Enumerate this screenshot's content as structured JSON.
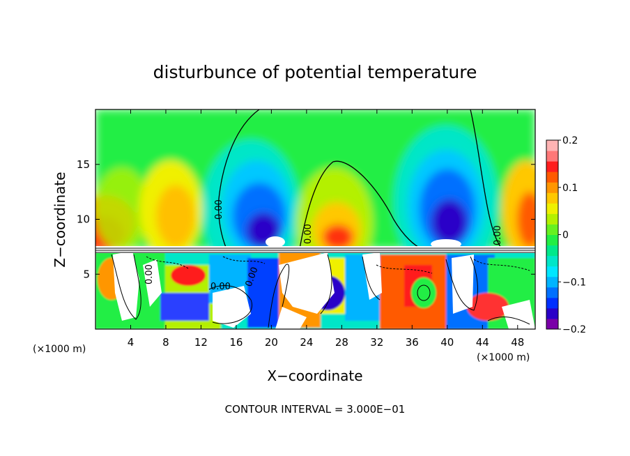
{
  "chart_data": {
    "type": "heatmap",
    "title": "disturbunce of potential temperature",
    "xlabel": "X−coordinate",
    "ylabel": "Z−coordinate",
    "x_unit_label": "(×1000 m)",
    "x_unit_label_right": "(×1000 m)",
    "footer": "CONTOUR INTERVAL = 3.000E−01",
    "xlim": [
      0,
      50
    ],
    "ylim": [
      0,
      20
    ],
    "x_ticks": [
      "4",
      "8",
      "12",
      "16",
      "20",
      "24",
      "28",
      "32",
      "36",
      "40",
      "44",
      "48"
    ],
    "y_ticks": [
      "5",
      "10",
      "15"
    ],
    "colorbar": {
      "range": [
        -0.2,
        0.2
      ],
      "tick_labels": [
        "0.2",
        "0.1",
        "0",
        "−0.1",
        "−0.2"
      ],
      "colors": [
        "#7a00a8",
        "#2a00c8",
        "#0030ff",
        "#0070ff",
        "#00b4ff",
        "#00e6ff",
        "#00e6c8",
        "#00e88a",
        "#22ee44",
        "#66f020",
        "#b4f000",
        "#f0f000",
        "#ffc800",
        "#ff9600",
        "#ff5a00",
        "#ff1e1e",
        "#ff7878",
        "#ffb4b4"
      ]
    },
    "contour_labels": [
      "0.00",
      "0.00",
      "0.00",
      "0.00",
      "0.00",
      "0.00"
    ],
    "grid": false,
    "legend_position": "right"
  }
}
